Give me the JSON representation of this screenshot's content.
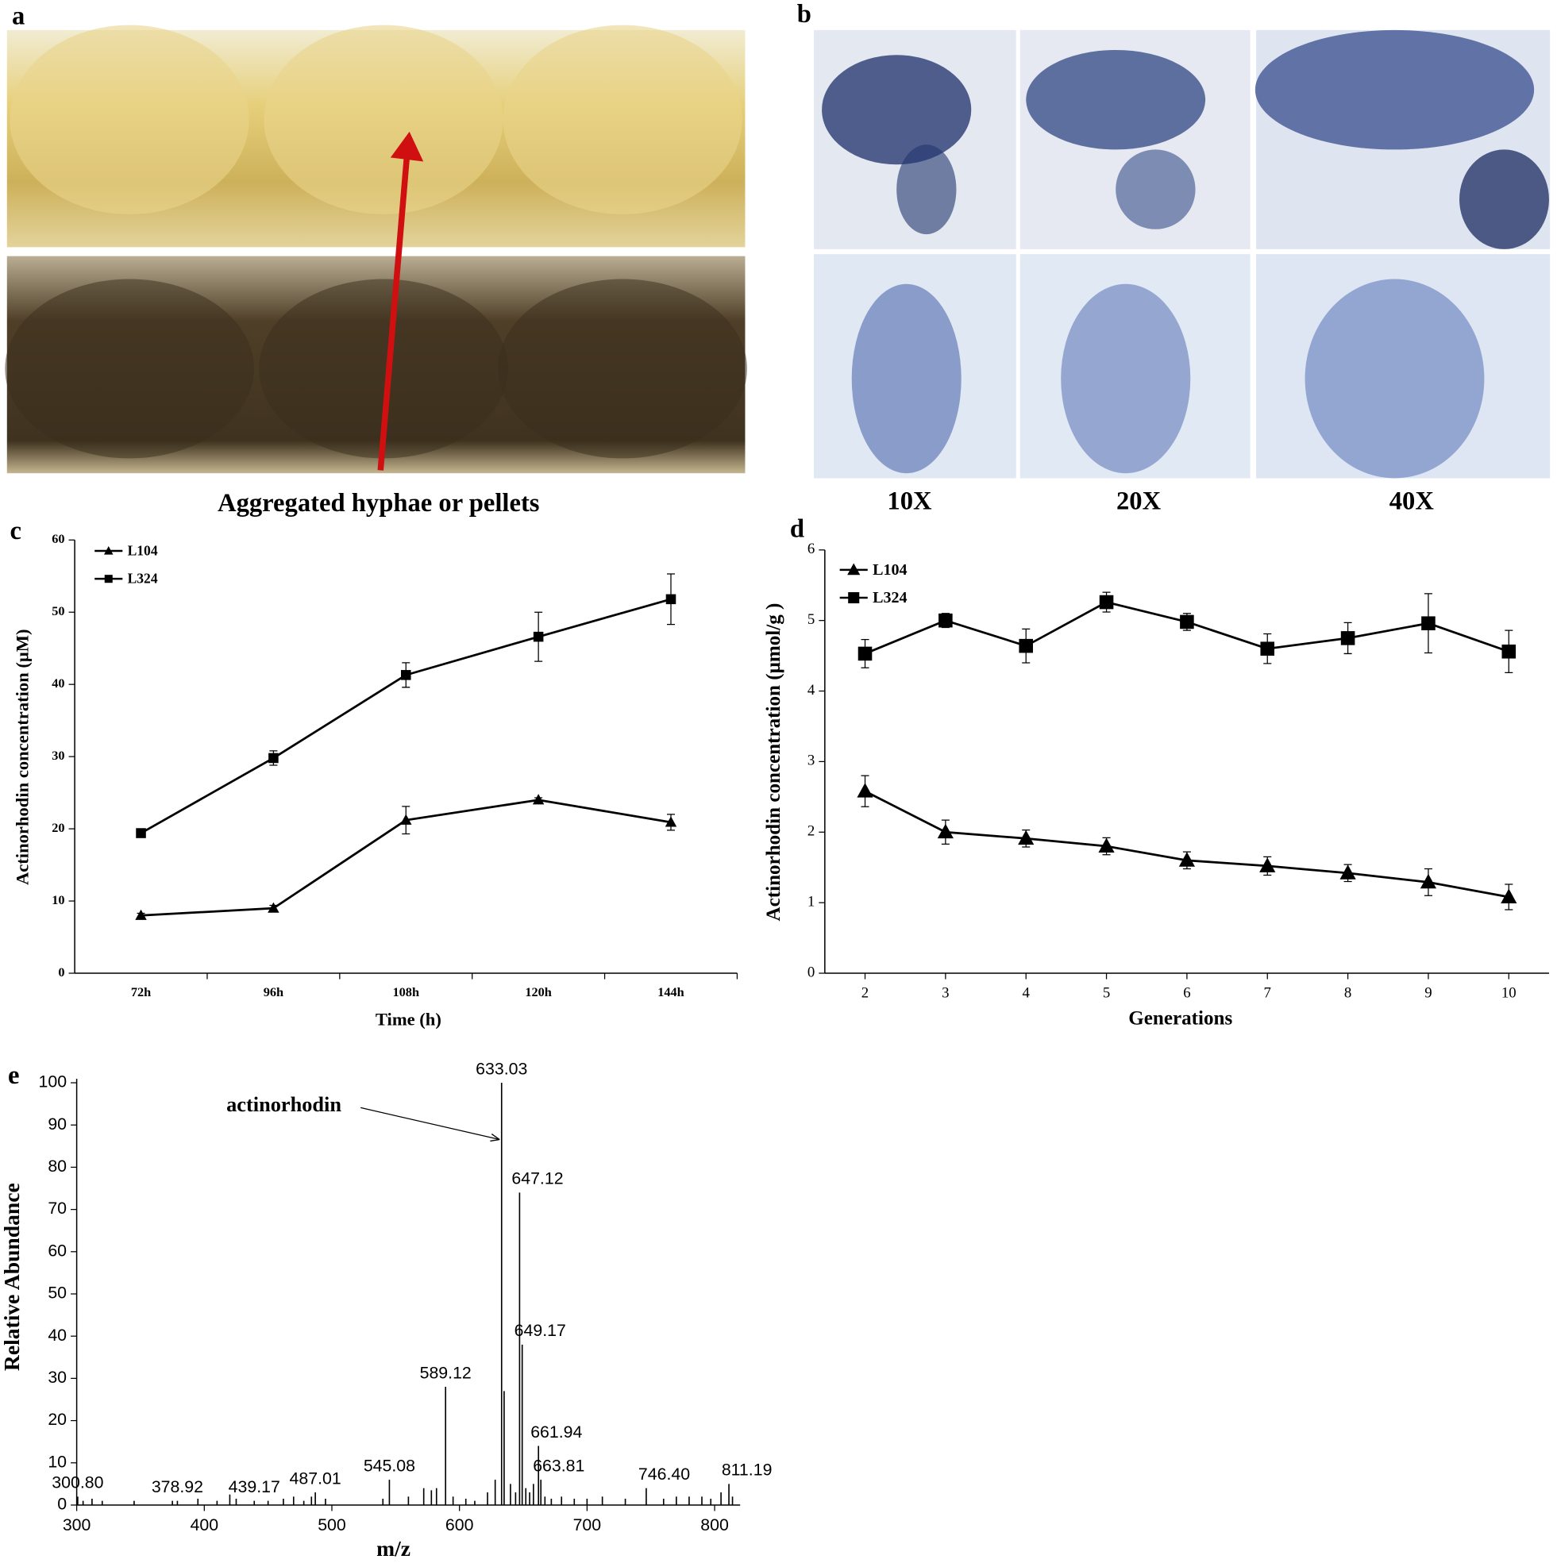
{
  "figure": {
    "panel_labels": [
      "a",
      "b",
      "c",
      "d",
      "e"
    ],
    "photo_caption": "Aggregated hyphae or pellets",
    "magnifications": [
      "10X",
      "20X",
      "40X"
    ]
  },
  "chart_data": [
    {
      "type": "line",
      "x_label": "Time  (h)",
      "y_label": "Actinorhodin  concentration (μM)",
      "categories": [
        "72h",
        "96h",
        "108h",
        "120h",
        "144h"
      ],
      "series": [
        {
          "name": "L104",
          "color": "#000000",
          "marker": "triangle",
          "values": [
            8,
            9,
            21.2,
            24,
            20.9
          ],
          "errors": [
            0.3,
            0.4,
            1.9,
            0.3,
            1.1
          ]
        },
        {
          "name": "L324",
          "color": "#000000",
          "marker": "square",
          "values": [
            19.4,
            29.8,
            41.3,
            46.6,
            51.8
          ],
          "errors": [
            0.4,
            1.0,
            1.7,
            3.4,
            3.5
          ]
        }
      ],
      "ylim": [
        0,
        60
      ],
      "yticks": [
        0,
        10,
        20,
        30,
        40,
        50,
        60
      ],
      "legend": "upper left"
    },
    {
      "type": "line",
      "x_label": "Generations",
      "y_label": "Actinorhodin  concentration  (μmol/g )",
      "x": [
        2,
        3,
        4,
        5,
        6,
        7,
        8,
        9,
        10
      ],
      "series": [
        {
          "name": "L104",
          "color": "#000000",
          "marker": "triangle",
          "values": [
            2.58,
            2.0,
            1.91,
            1.8,
            1.6,
            1.52,
            1.42,
            1.29,
            1.08
          ],
          "errors": [
            0.22,
            0.17,
            0.12,
            0.12,
            0.12,
            0.13,
            0.12,
            0.19,
            0.18
          ]
        },
        {
          "name": "L324",
          "color": "#000000",
          "marker": "square",
          "values": [
            4.53,
            5.0,
            4.64,
            5.26,
            4.98,
            4.6,
            4.75,
            4.96,
            4.56
          ],
          "errors": [
            0.2,
            0.1,
            0.24,
            0.14,
            0.12,
            0.21,
            0.22,
            0.42,
            0.3
          ]
        }
      ],
      "xlim": [
        1.5,
        10.5
      ],
      "xticks": [
        2,
        3,
        4,
        5,
        6,
        7,
        8,
        9,
        10
      ],
      "ylim": [
        0,
        6
      ],
      "yticks": [
        0,
        1,
        2,
        3,
        4,
        5,
        6
      ],
      "legend": "upper left"
    },
    {
      "type": "stem",
      "x_label": "m/z",
      "y_label": "Relative Abundance",
      "annotation": "actinorhodin",
      "color": "#000000",
      "peaks": {
        "x": [
          300.8,
          378.92,
          439.17,
          487.01,
          545.08,
          589.12,
          633.03,
          647.12,
          649.17,
          661.94,
          663.81,
          746.4,
          811.19
        ],
        "values": [
          2,
          1,
          1,
          3,
          6,
          28,
          100,
          74,
          38,
          14,
          6,
          4,
          5
        ],
        "x_labels": [
          "300.80",
          "378.92",
          "439.17",
          "487.01",
          "545.08",
          "589.12",
          "633.03",
          "647.12",
          "649.17",
          "661.94",
          "663.81",
          "746.40",
          "811.19"
        ]
      },
      "minor_peaks": {
        "x": [
          305,
          312,
          320,
          345,
          375,
          395,
          410,
          420,
          425,
          450,
          462,
          470,
          478,
          484,
          495,
          540,
          560,
          572,
          578,
          582,
          595,
          605,
          612,
          622,
          628,
          635,
          640,
          644,
          652,
          655,
          658,
          667,
          672,
          680,
          690,
          700,
          712,
          730,
          760,
          770,
          780,
          790,
          797,
          805,
          814
        ],
        "values": [
          1,
          1.5,
          1,
          1,
          1,
          1.5,
          1,
          2.5,
          1.5,
          1,
          1.5,
          2,
          1,
          2,
          1.5,
          1.5,
          2,
          4,
          3.5,
          4,
          2,
          1.5,
          1,
          3,
          6,
          27,
          5,
          3,
          4,
          3,
          5,
          2,
          1.5,
          2,
          1.5,
          1.5,
          2,
          1.5,
          1.5,
          2,
          2,
          2,
          1.5,
          3,
          2
        ]
      },
      "xlim": [
        300,
        820
      ],
      "xticks": [
        300,
        400,
        500,
        600,
        700,
        800
      ],
      "ylim": [
        0,
        100
      ],
      "yticks": [
        0,
        10,
        20,
        30,
        40,
        50,
        60,
        70,
        80,
        90,
        100
      ]
    }
  ]
}
